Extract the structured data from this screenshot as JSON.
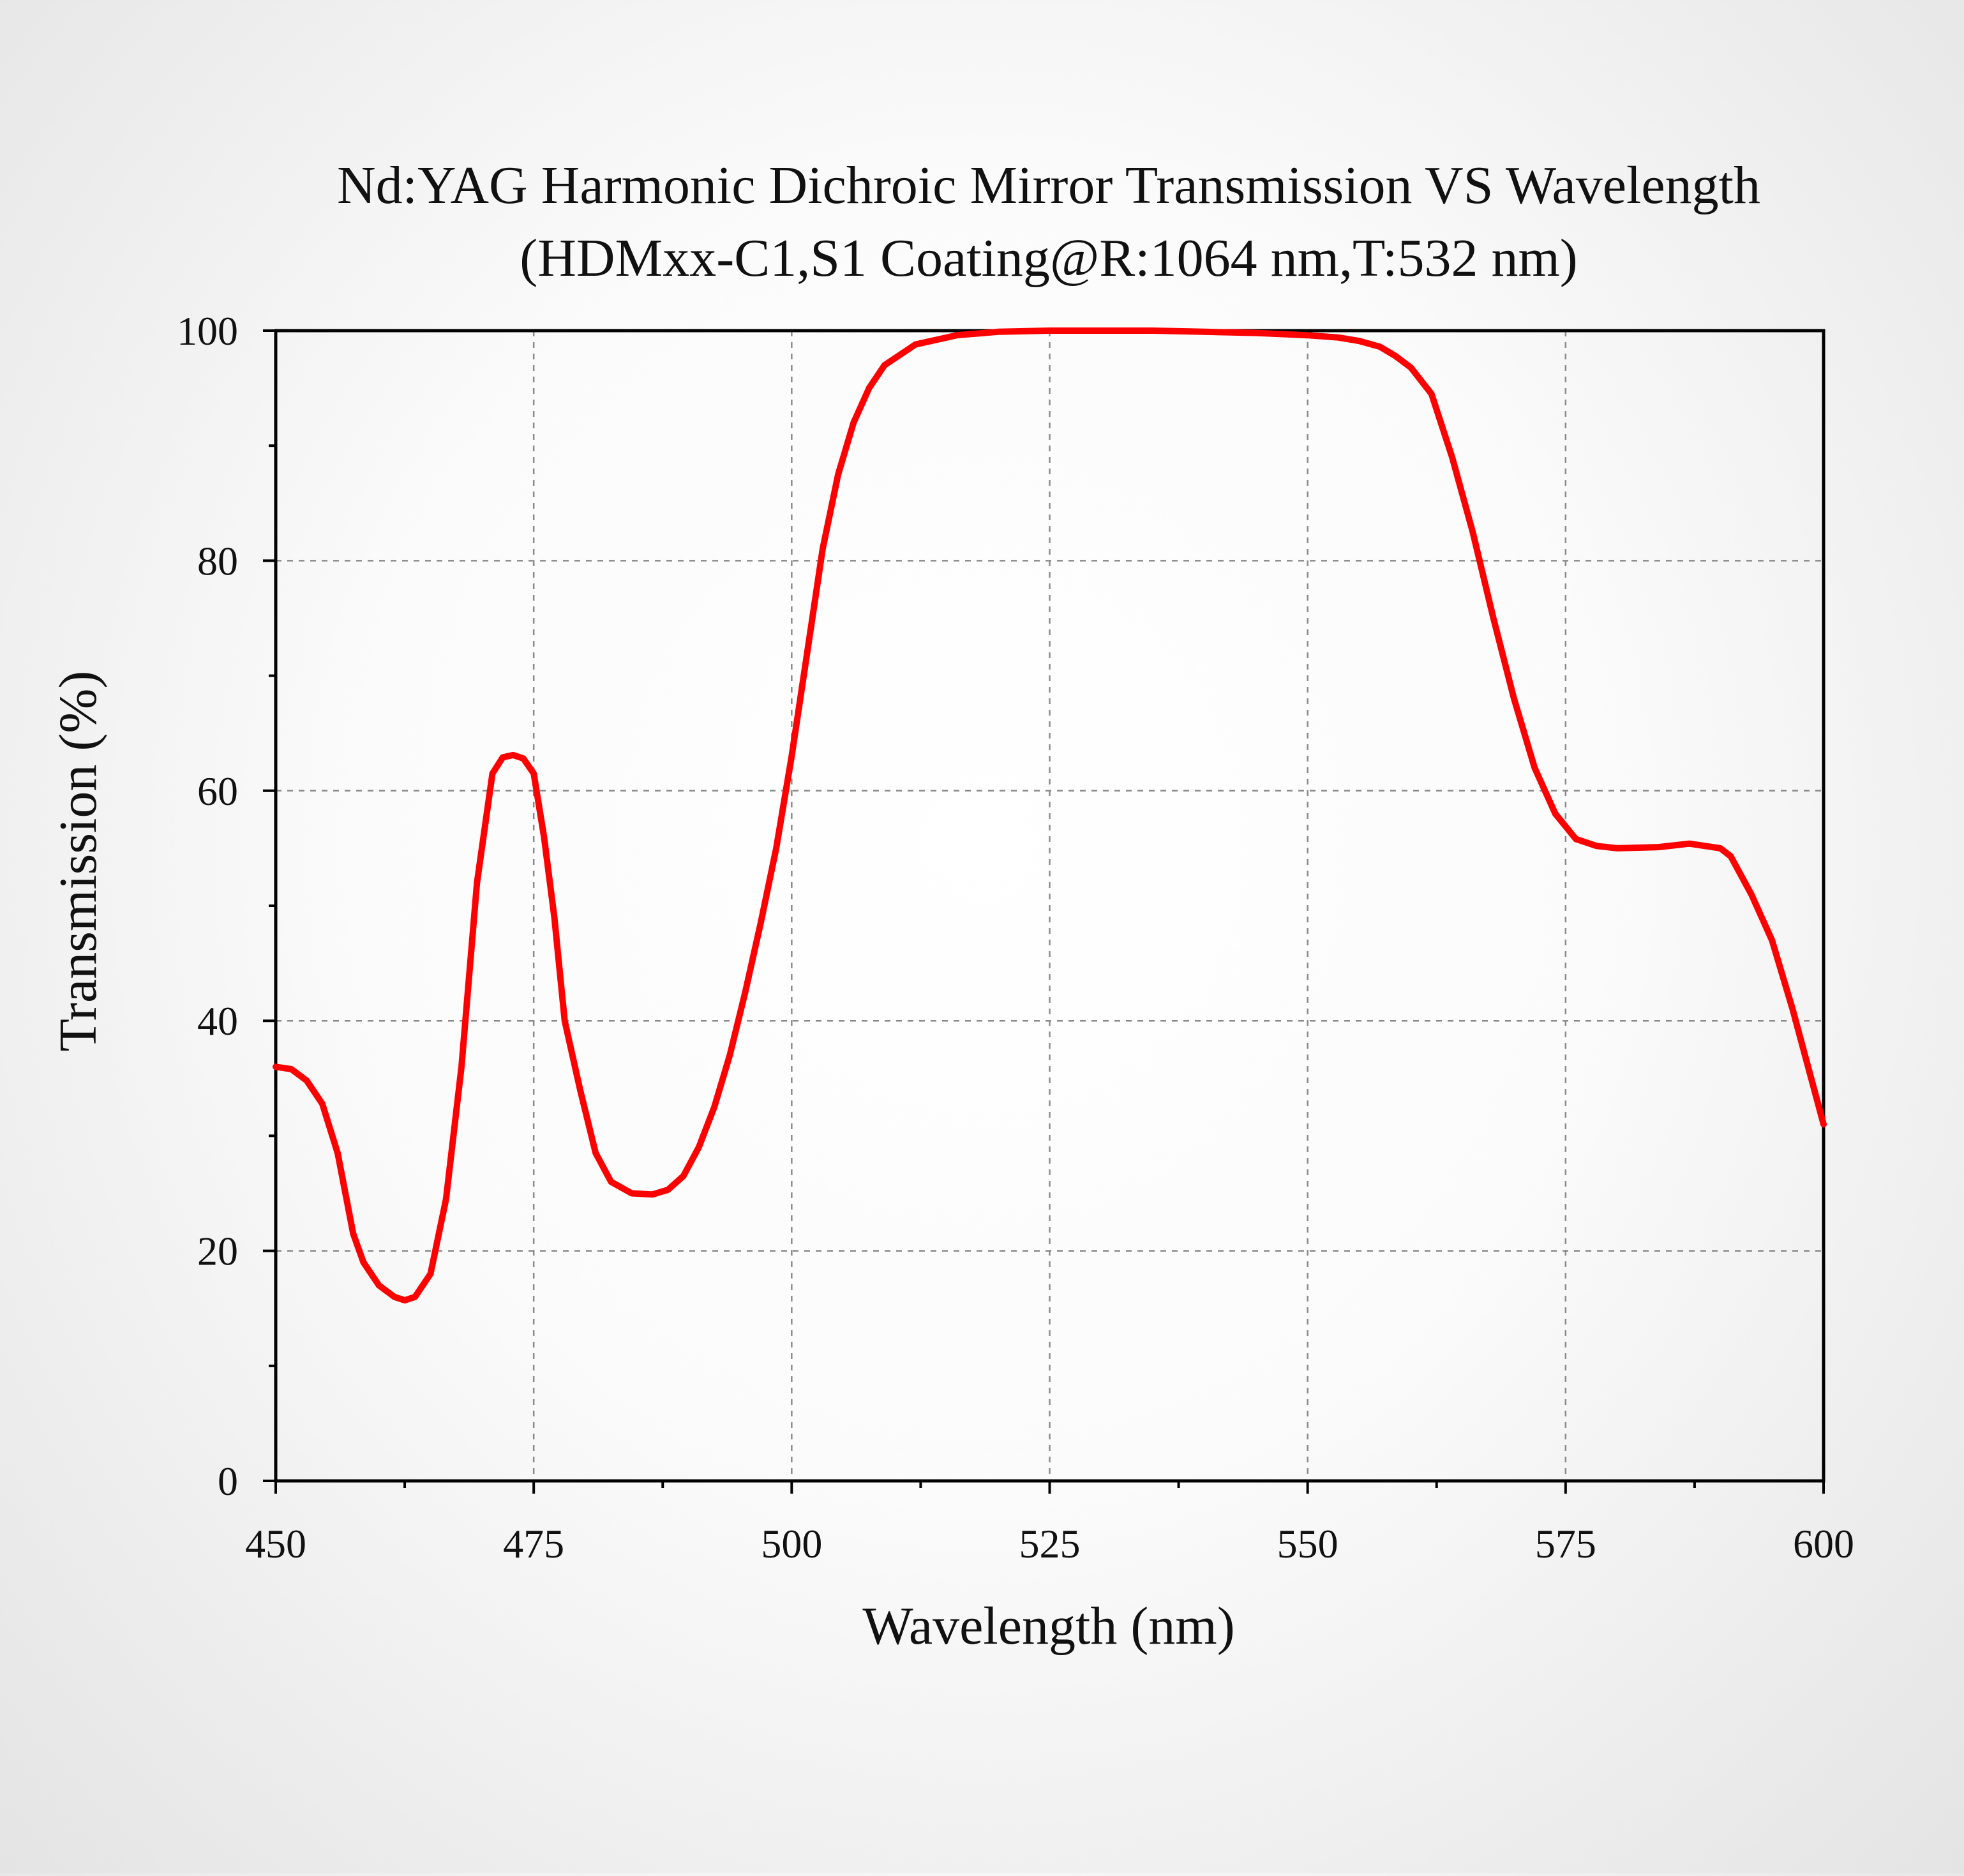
{
  "chart_data": {
    "type": "line",
    "title": "Nd:YAG Harmonic Dichroic Mirror Transmission VS Wavelength",
    "subtitle": "(HDMxx-C1,S1 Coating@R:1064 nm,T:532 nm)",
    "xlabel": "Wavelength (nm)",
    "ylabel": "Transmission (%)",
    "xlim": [
      450,
      600
    ],
    "ylim": [
      0,
      100
    ],
    "x_ticks": [
      "450",
      "475",
      "500",
      "525",
      "550",
      "575",
      "600"
    ],
    "y_ticks": [
      "0",
      "20",
      "40",
      "60",
      "80",
      "100"
    ],
    "grid": true,
    "line_color": "#ff0000",
    "series": [
      {
        "x": [
          450,
          451.5,
          453,
          454.5,
          456,
          457.5,
          458.5,
          460,
          461.5,
          462.5,
          463.5,
          465,
          466.5,
          468,
          469.5,
          471,
          472,
          473,
          474,
          475,
          476,
          477,
          478,
          479.5,
          481,
          482.5,
          484.5,
          486.5,
          488,
          489.5,
          491,
          492.5,
          494,
          495.5,
          497,
          498.5,
          500,
          501.5,
          503,
          504.5,
          506,
          507.5,
          509,
          512,
          516,
          520,
          525,
          530,
          535,
          540,
          545,
          550,
          553,
          555,
          557,
          558.5,
          560,
          562,
          564,
          566,
          568,
          570,
          572,
          574,
          576,
          578,
          580,
          584,
          587,
          590,
          591,
          593,
          595,
          597,
          600
        ],
        "y": [
          36,
          35.8,
          34.8,
          32.8,
          28.5,
          21.5,
          19,
          17,
          16,
          15.7,
          16,
          18,
          24.5,
          36,
          52,
          61.5,
          62.9,
          63.1,
          62.8,
          61.5,
          56,
          49,
          40,
          34,
          28.5,
          26,
          25,
          24.9,
          25.3,
          26.5,
          29,
          32.5,
          37,
          42.5,
          48.5,
          55,
          63,
          72,
          81,
          87.5,
          92,
          95,
          97,
          98.8,
          99.6,
          99.9,
          100,
          100,
          100,
          99.9,
          99.8,
          99.6,
          99.4,
          99.1,
          98.6,
          97.8,
          96.8,
          94.5,
          89,
          82.5,
          75,
          68,
          62,
          58,
          55.8,
          55.2,
          55,
          55.1,
          55.4,
          55,
          54.3,
          51,
          47,
          41,
          31
        ]
      }
    ]
  }
}
